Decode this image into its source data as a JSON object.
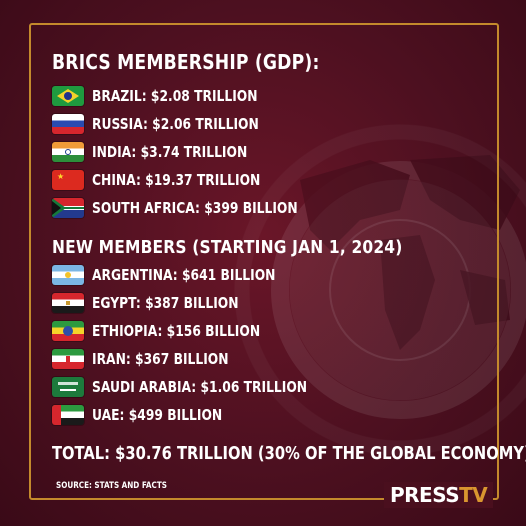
{
  "title": "BRICS MEMBERSHIP (GDP):",
  "members": [
    {
      "flag": "brazil-flag",
      "label": "BRAZIL: $2.08 TRILLION"
    },
    {
      "flag": "russia-flag",
      "label": "RUSSIA: $2.06 TRILLION"
    },
    {
      "flag": "india-flag",
      "label": "INDIA: $3.74 TRILLION"
    },
    {
      "flag": "china-flag",
      "label": "CHINA: $19.37 TRILLION"
    },
    {
      "flag": "south-africa-flag",
      "label": "SOUTH AFRICA: $399 BILLION"
    }
  ],
  "new_members_title": "NEW MEMBERS (STARTING JAN 1, 2024)",
  "new_members": [
    {
      "flag": "argentina-flag",
      "label": "ARGENTINA: $641 BILLION"
    },
    {
      "flag": "egypt-flag",
      "label": "EGYPT: $387 BILLION"
    },
    {
      "flag": "ethiopia-flag",
      "label": "ETHIOPIA: $156 BILLION"
    },
    {
      "flag": "iran-flag",
      "label": "IRAN: $367 BILLION"
    },
    {
      "flag": "saudi-arabia-flag",
      "label": "SAUDI ARABIA: $1.06 TRILLION"
    },
    {
      "flag": "uae-flag",
      "label": "UAE: $499 BILLION"
    }
  ],
  "total": "TOTAL: $30.76 TRILLION (30% OF THE GLOBAL ECONOMY)",
  "source": "SOURCE: STATS AND FACTS",
  "logo": {
    "part1": "PRESS",
    "part2": "TV"
  },
  "colors": {
    "background": "#4a0f1e",
    "frame": "#c48a2c",
    "accent": "#d9962f",
    "text": "#ffffff"
  }
}
